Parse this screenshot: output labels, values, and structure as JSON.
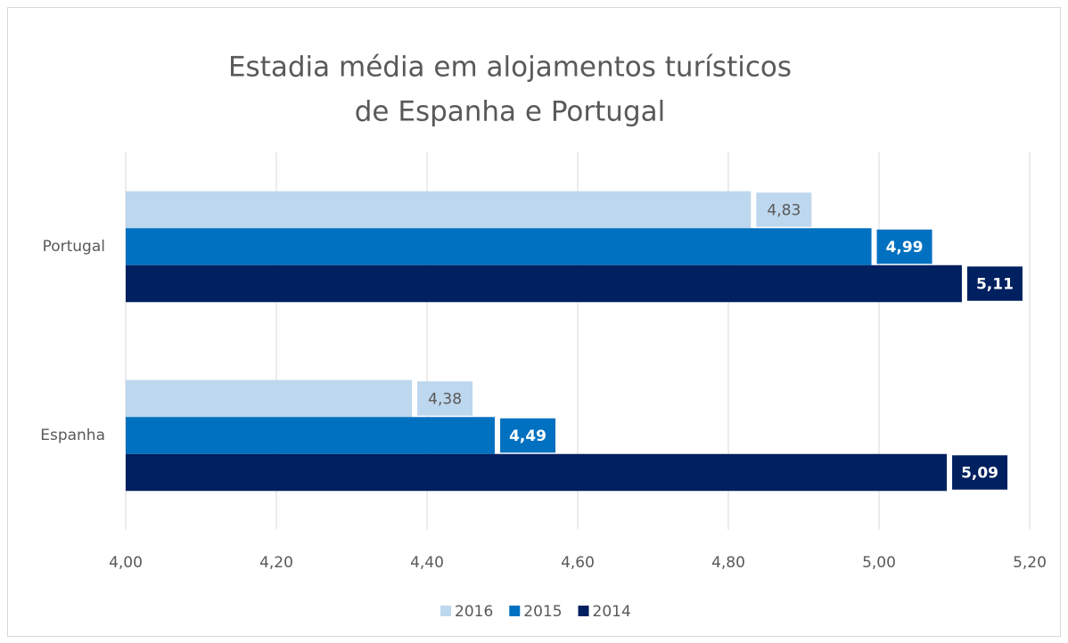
{
  "chart_data": {
    "type": "hbar",
    "title": [
      "Estadia média em alojamentos turísticos",
      "de Espanha e Portugal"
    ],
    "categories": [
      "Portugal",
      "Espanha"
    ],
    "series": [
      {
        "name": "2016",
        "color": "#bdd7ee",
        "values": [
          4.83,
          4.38
        ],
        "value_labels": [
          "4,83",
          "4,38"
        ]
      },
      {
        "name": "2015",
        "color": "#0070c0",
        "values": [
          4.99,
          4.49
        ],
        "value_labels": [
          "4,99",
          "4,49"
        ]
      },
      {
        "name": "2014",
        "color": "#002060",
        "values": [
          5.11,
          5.09
        ],
        "value_labels": [
          "5,11",
          "5,09"
        ]
      }
    ],
    "xlim": [
      4.0,
      5.2
    ],
    "xticks": [
      {
        "value": 4.0,
        "label": "4,00"
      },
      {
        "value": 4.2,
        "label": "4,20"
      },
      {
        "value": 4.4,
        "label": "4,40"
      },
      {
        "value": 4.6,
        "label": "4,60"
      },
      {
        "value": 4.8,
        "label": "4,80"
      },
      {
        "value": 5.0,
        "label": "5,00"
      },
      {
        "value": 5.2,
        "label": "5,20"
      }
    ],
    "grid": true,
    "legend": "bottom"
  }
}
